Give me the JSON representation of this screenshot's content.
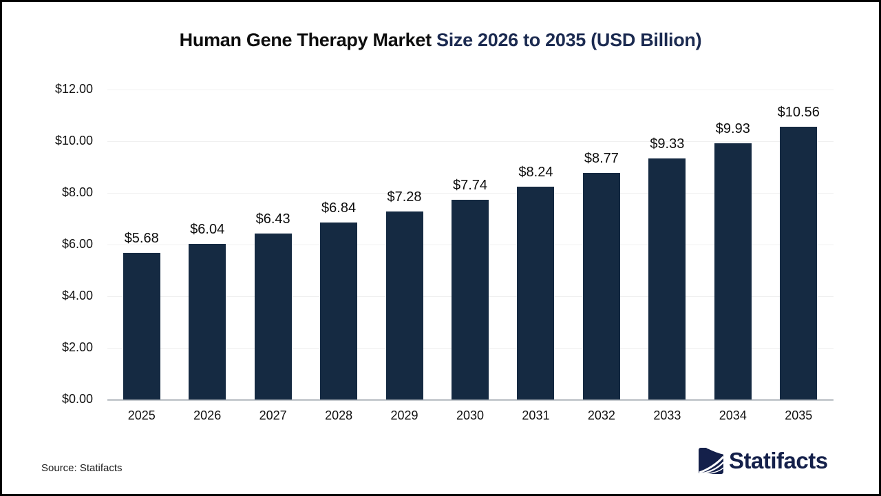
{
  "title": {
    "black": "Human Gene Therapy Market ",
    "accent": "Size 2026 to 2035 (USD Billion)"
  },
  "footer": {
    "source": "Source: Statifacts",
    "brand": "Statifacts"
  },
  "colors": {
    "bar": "#152a42",
    "title_accent": "#1b2a50",
    "logo_navy": "#14204a",
    "gridline": "#f0f0f0",
    "axis_line": "#c8ccd0"
  },
  "chart_data": {
    "type": "bar",
    "title": "Human Gene Therapy Market Size 2026 to 2035 (USD Billion)",
    "unit": "USD Billion",
    "categories": [
      "2025",
      "2026",
      "2027",
      "2028",
      "2029",
      "2030",
      "2031",
      "2032",
      "2033",
      "2034",
      "2035"
    ],
    "values": [
      5.68,
      6.04,
      6.43,
      6.84,
      7.28,
      7.74,
      8.24,
      8.77,
      9.33,
      9.93,
      10.56
    ],
    "value_labels": [
      "$5.68",
      "$6.04",
      "$6.43",
      "$6.84",
      "$7.28",
      "$7.74",
      "$8.24",
      "$8.77",
      "$9.33",
      "$9.93",
      "$10.56"
    ],
    "xlabel": "",
    "ylabel": "",
    "ylim": [
      0,
      12
    ],
    "ytick_step": 2,
    "yticks": [
      "$0.00",
      "$2.00",
      "$4.00",
      "$6.00",
      "$8.00",
      "$10.00",
      "$12.00"
    ],
    "grid": true,
    "legend": null,
    "bar_color": "#152a42"
  }
}
